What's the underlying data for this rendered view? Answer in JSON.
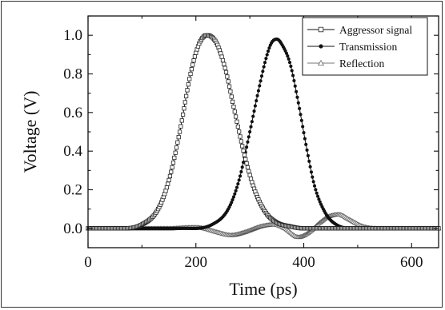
{
  "chart_data": {
    "type": "line",
    "xlabel": "Time (ps)",
    "ylabel": "Voltage (V)",
    "xlim": [
      0,
      650
    ],
    "ylim": [
      -0.1,
      1.1
    ],
    "x_ticks": [
      0,
      200,
      400,
      600
    ],
    "x_tick_labels": [
      "0",
      "200",
      "400",
      "600"
    ],
    "y_ticks": [
      0.0,
      0.2,
      0.4,
      0.6,
      0.8,
      1.0
    ],
    "y_tick_labels": [
      "0.0",
      "0.2",
      "0.4",
      "0.6",
      "0.8",
      "1.0"
    ],
    "legend_position": "top-right",
    "grid": false,
    "series": [
      {
        "name": "Aggressor signal",
        "marker": "square",
        "x": [
          0,
          60,
          100,
          130,
          150,
          170,
          190,
          205,
          215,
          222,
          230,
          240,
          255,
          270,
          290,
          310,
          330,
          350,
          375,
          400,
          450,
          650
        ],
        "values": [
          0.0,
          0.0,
          0.02,
          0.1,
          0.25,
          0.5,
          0.8,
          0.95,
          0.995,
          1.0,
          0.99,
          0.95,
          0.82,
          0.63,
          0.38,
          0.19,
          0.08,
          0.03,
          0.01,
          0.0,
          0.0,
          0.0
        ]
      },
      {
        "name": "Transmission",
        "marker": "dot",
        "x": [
          0,
          180,
          230,
          260,
          280,
          300,
          315,
          330,
          340,
          350,
          360,
          375,
          390,
          405,
          420,
          440,
          460,
          490,
          530,
          650
        ],
        "values": [
          0.0,
          0.0,
          0.02,
          0.1,
          0.25,
          0.5,
          0.7,
          0.88,
          0.96,
          0.98,
          0.95,
          0.85,
          0.65,
          0.42,
          0.22,
          0.08,
          0.02,
          0.0,
          0.0,
          0.0
        ]
      },
      {
        "name": "Reflection",
        "marker": "triangle",
        "x": [
          0,
          150,
          190,
          210,
          240,
          265,
          290,
          320,
          345,
          365,
          390,
          410,
          430,
          445,
          465,
          485,
          510,
          540,
          650
        ],
        "values": [
          0.0,
          0.0,
          0.005,
          0.003,
          -0.02,
          -0.035,
          -0.02,
          0.01,
          0.02,
          0.0,
          -0.045,
          -0.02,
          0.03,
          0.06,
          0.072,
          0.045,
          0.01,
          0.0,
          0.0
        ]
      }
    ]
  }
}
